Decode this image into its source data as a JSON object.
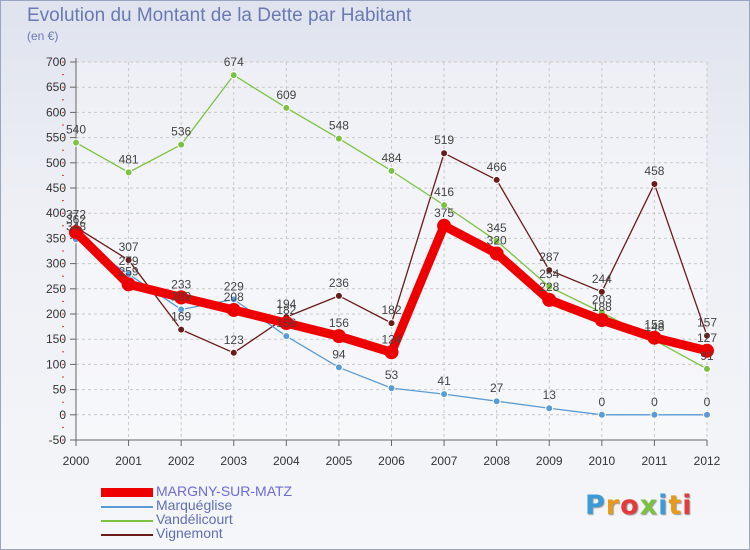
{
  "title": "Evolution du Montant de la Dette par Habitant",
  "subtitle": "(en €)",
  "logo": "Proxiti",
  "colors": {
    "title": "#6b79b3",
    "axis_text": "#333333",
    "grid": "#c8c8c8",
    "logo_letters": [
      "#3a9bd8",
      "#e89a1a",
      "#e33b3b",
      "#7cc242",
      "#3a9bd8",
      "#e89a1a",
      "#e33b3b"
    ]
  },
  "chart_data": {
    "type": "line",
    "x": [
      "2000",
      "2001",
      "2002",
      "2003",
      "2004",
      "2005",
      "2006",
      "2007",
      "2008",
      "2009",
      "2010",
      "2011",
      "2012"
    ],
    "ylim": [
      -50,
      700
    ],
    "yticks": [
      -50,
      0,
      50,
      100,
      150,
      200,
      250,
      300,
      350,
      400,
      450,
      500,
      550,
      600,
      650,
      700
    ],
    "grid": true,
    "legend_position": "bottom-left",
    "series": [
      {
        "name": "Vignemont",
        "color": "#6b1a1a",
        "values": [
          372,
          307,
          169,
          123,
          194,
          236,
          182,
          519,
          466,
          287,
          244,
          458,
          157
        ]
      },
      {
        "name": "Vandélicourt",
        "color": "#7cc242",
        "values": [
          540,
          481,
          536,
          674,
          609,
          548,
          484,
          416,
          345,
          254,
          203,
          148,
          91
        ]
      },
      {
        "name": "Marquéglise",
        "color": "#5b9bd5",
        "values": [
          348,
          279,
          209,
          229,
          156,
          94,
          53,
          41,
          27,
          13,
          0,
          0,
          0
        ]
      },
      {
        "name": "MARGNY-SUR-MATZ",
        "color": "#ee0000",
        "values": [
          362,
          259,
          233,
          208,
          182,
          156,
          124,
          375,
          320,
          228,
          188,
          153,
          127
        ]
      }
    ],
    "legend": [
      "MARGNY-SUR-MATZ",
      "Marquéglise",
      "Vandélicourt",
      "Vignemont"
    ]
  }
}
